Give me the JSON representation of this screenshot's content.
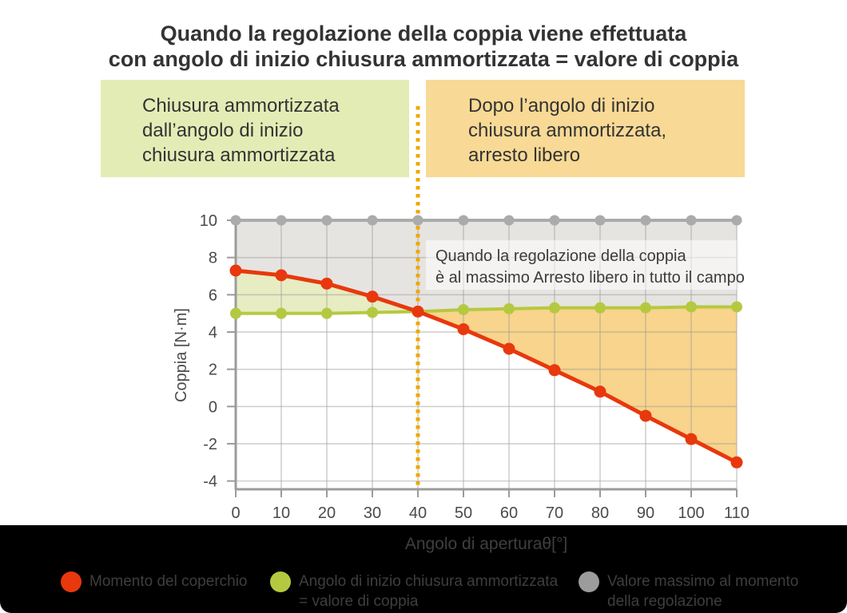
{
  "title": {
    "line1": "Quando la regolazione della coppia viene effettuata",
    "line2": "con angolo di inizio chiusura ammortizzata = valore di coppia"
  },
  "callouts": {
    "left": {
      "text": "Chiusura ammortizzata\ndall’angolo di inizio\nchiusura ammortizzata",
      "bg": "#e4ecb6"
    },
    "right": {
      "text": "Dopo l’angolo di inizio\nchiusura ammortizzata,\narresto libero",
      "bg": "#f8d995"
    }
  },
  "chart_data": {
    "type": "line",
    "x": [
      0,
      10,
      20,
      30,
      40,
      50,
      60,
      70,
      80,
      90,
      100,
      110
    ],
    "series": [
      {
        "name": "Momento del coperchio",
        "color": "#e8380d",
        "values": [
          7.3,
          7.05,
          6.6,
          5.9,
          5.1,
          4.15,
          3.1,
          1.95,
          0.8,
          -0.5,
          -1.75,
          -3.0
        ]
      },
      {
        "name": "Angolo di inizio chiusura ammortizzata = valore di coppia",
        "color": "#b5c940",
        "values": [
          5.0,
          5.0,
          5.0,
          5.05,
          5.1,
          5.2,
          5.25,
          5.3,
          5.3,
          5.3,
          5.35,
          5.35
        ]
      },
      {
        "name": "Valore massimo al momento della regolazione",
        "color": "#ababab",
        "values": [
          10,
          10,
          10,
          10,
          10,
          10,
          10,
          10,
          10,
          10,
          10,
          10
        ]
      }
    ],
    "xlabel": "Angolo di aperturaθ[°]",
    "ylabel": "Coppia [N·m]",
    "xticks": [
      0,
      10,
      20,
      30,
      40,
      50,
      60,
      70,
      80,
      90,
      100,
      110
    ],
    "yticks": [
      10,
      8,
      6,
      4,
      2,
      0,
      -2,
      -4
    ],
    "xlim": [
      0,
      110
    ],
    "ylim": [
      -4.6,
      10
    ],
    "grid": true,
    "grid_color": "#999999",
    "axis_color": "#9b9b9b",
    "tick_label_color": "#4a4a4a",
    "divider_x": 40,
    "divider_color": "#f0a800",
    "fills": {
      "upper_gray": "#e6e4e1",
      "left_green": "#e7ecc2",
      "right_orange": "#f8d48c"
    },
    "annotation": {
      "line1": "Quando la regolazione della coppia",
      "line2": "è al massimo Arresto libero in tutto il campo",
      "color": "#3b3b3b"
    }
  },
  "legend": {
    "items": [
      {
        "label": "Momento del coperchio",
        "color": "#e8380d"
      },
      {
        "label": "Angolo di inizio chiusura ammortizzata\n= valore di coppia",
        "color": "#b5c940"
      },
      {
        "label": "Valore massimo al momento\ndella regolazione",
        "color": "#9c9c9c"
      }
    ]
  }
}
